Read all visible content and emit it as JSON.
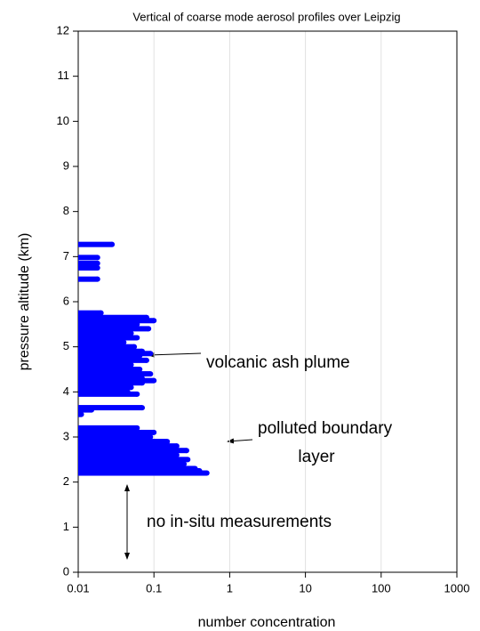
{
  "chart_data": {
    "type": "bar",
    "orientation": "horizontal",
    "title": "Vertical of coarse mode aerosol profiles over Leipzig",
    "xlabel": "number concentration",
    "ylabel": "pressure altitude (km)",
    "color": "#0000ff",
    "xscale": "log",
    "grid": true,
    "xlim": [
      0.01,
      1000
    ],
    "xticks": [
      0.01,
      0.1,
      1,
      10,
      100,
      1000
    ],
    "ylim": [
      0,
      12
    ],
    "yticks": [
      0,
      1,
      2,
      3,
      4,
      5,
      6,
      7,
      8,
      9,
      10,
      11,
      12
    ],
    "y": [
      7.27,
      6.98,
      6.85,
      6.75,
      6.5,
      5.75,
      5.65,
      5.58,
      5.5,
      5.4,
      5.3,
      5.2,
      5.1,
      5.0,
      4.9,
      4.85,
      4.8,
      4.7,
      4.6,
      4.5,
      4.4,
      4.3,
      4.25,
      4.2,
      4.1,
      4.0,
      3.95,
      3.65,
      3.6,
      3.5,
      3.2,
      3.1,
      3.0,
      2.9,
      2.8,
      2.7,
      2.6,
      2.5,
      2.4,
      2.3,
      2.25,
      2.2
    ],
    "values": [
      0.028,
      0.018,
      0.018,
      0.018,
      0.018,
      0.02,
      0.08,
      0.1,
      0.06,
      0.085,
      0.05,
      0.06,
      0.04,
      0.055,
      0.07,
      0.09,
      0.065,
      0.08,
      0.05,
      0.065,
      0.09,
      0.07,
      0.1,
      0.07,
      0.05,
      0.045,
      0.06,
      0.07,
      0.015,
      0.011,
      0.06,
      0.1,
      0.09,
      0.15,
      0.2,
      0.27,
      0.2,
      0.28,
      0.25,
      0.35,
      0.4,
      0.5
    ],
    "annotations": [
      "volcanic ash plume",
      "polluted boundary",
      "layer",
      "no in-situ measurements"
    ]
  }
}
